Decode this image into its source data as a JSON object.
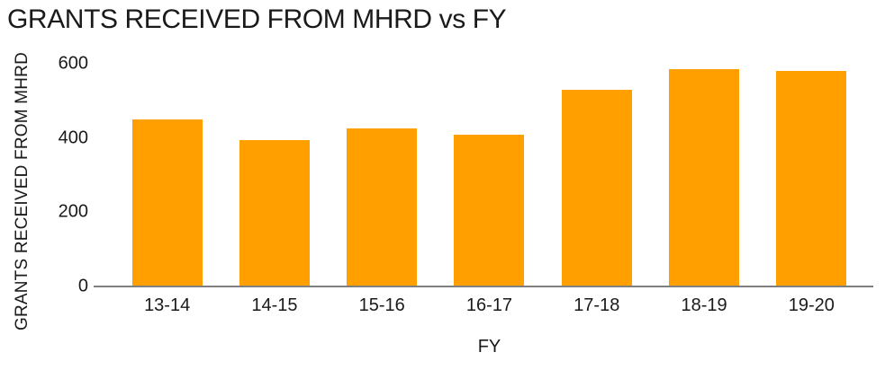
{
  "chart_data": {
    "type": "bar",
    "title": "GRANTS RECEIVED FROM MHRD vs FY",
    "xlabel": "FY",
    "ylabel": "GRANTS RECEIVED FROM MHRD",
    "categories": [
      "13-14",
      "14-15",
      "15-16",
      "16-17",
      "17-18",
      "18-19",
      "19-20"
    ],
    "values": [
      450,
      395,
      425,
      410,
      530,
      585,
      580
    ],
    "ylim": [
      0,
      600
    ],
    "yticks": [
      0,
      200,
      400,
      600
    ],
    "grid": false,
    "legend": false,
    "bar_color": "#FFA000",
    "axis_line_color": "#7F7F7F",
    "text_color": "#1A1A1A",
    "background_color": "#FFFFFF"
  }
}
